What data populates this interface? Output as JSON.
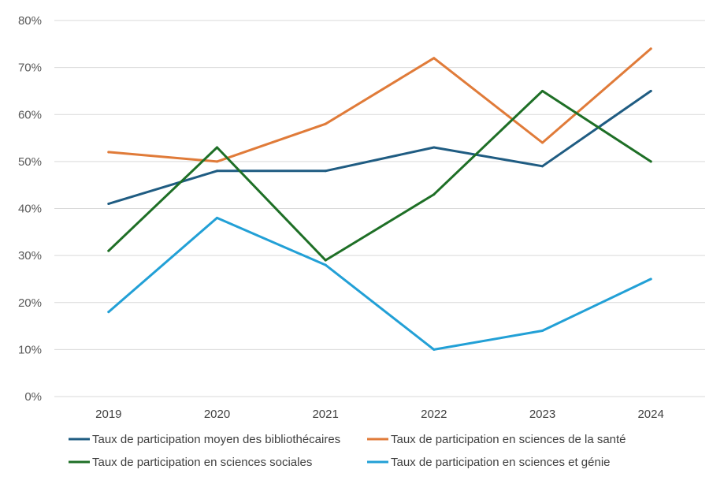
{
  "chart_data": {
    "type": "line",
    "categories": [
      "2019",
      "2020",
      "2021",
      "2022",
      "2023",
      "2024"
    ],
    "ylim": [
      0,
      80
    ],
    "yticks": [
      "0%",
      "10%",
      "20%",
      "30%",
      "40%",
      "50%",
      "60%",
      "70%",
      "80%"
    ],
    "grid": true,
    "legend_position": "bottom",
    "series": [
      {
        "name": "Taux de participation moyen des bibliothécaires",
        "color": "#1f5c82",
        "values": [
          41,
          48,
          48,
          53,
          49,
          65
        ]
      },
      {
        "name": "Taux de participation en sciences de la santé",
        "color": "#e07b39",
        "values": [
          52,
          50,
          58,
          72,
          54,
          74
        ]
      },
      {
        "name": "Taux de participation en sciences sociales",
        "color": "#1e6f26",
        "values": [
          31,
          53,
          29,
          43,
          65,
          50
        ]
      },
      {
        "name": "Taux de participation en sciences et génie",
        "color": "#22a0d6",
        "values": [
          18,
          38,
          28,
          10,
          14,
          25
        ]
      }
    ]
  }
}
